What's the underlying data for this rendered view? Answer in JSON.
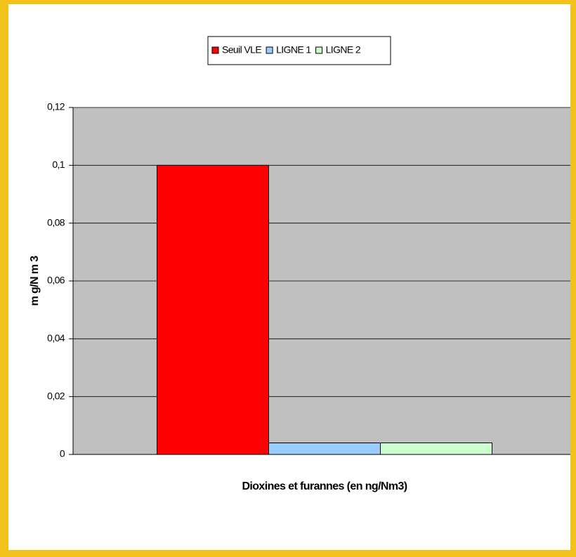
{
  "chart_data": {
    "type": "bar",
    "categories": [
      "Dioxines et furannes (en ng/Nm3)"
    ],
    "series": [
      {
        "name": "Seuil VLE",
        "color": "#ff0000",
        "values": [
          0.1
        ]
      },
      {
        "name": "LIGNE 1",
        "color": "#99ccff",
        "values": [
          0.004
        ]
      },
      {
        "name": "LIGNE 2",
        "color": "#ccffcc",
        "values": [
          0.004
        ]
      }
    ],
    "y_label": "m g/N m 3",
    "ylim": [
      0,
      0.12
    ],
    "yticks": [
      0,
      {
        "value": 0.02,
        "label": "0,02"
      },
      {
        "value": 0.04,
        "label": "0,04"
      },
      {
        "value": 0.06,
        "label": "0,06"
      },
      {
        "value": 0.08,
        "label": "0,08"
      },
      {
        "value": 0.1,
        "label": "0,1"
      },
      {
        "value": 0.12,
        "label": "0,12"
      }
    ],
    "grid": true,
    "legend": "top"
  }
}
